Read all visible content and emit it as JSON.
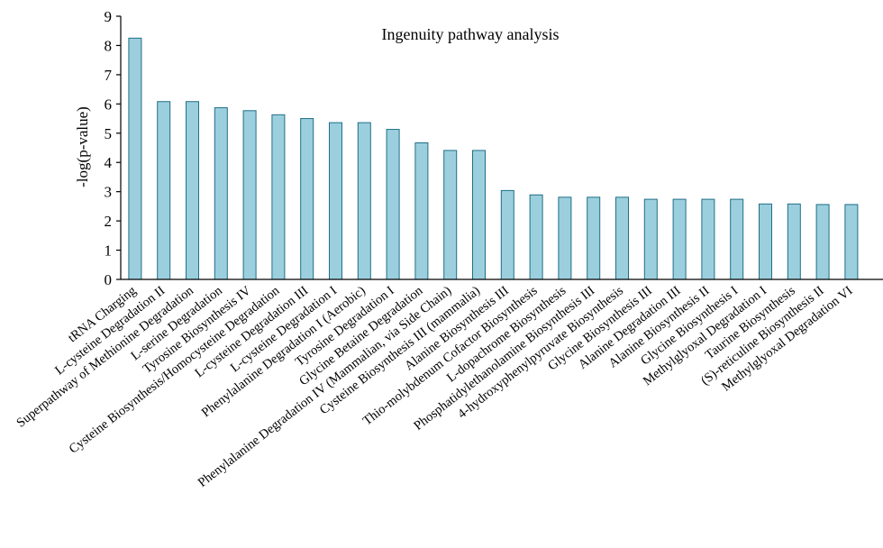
{
  "chart_data": {
    "type": "bar",
    "title": "Ingenuity pathway analysis",
    "xlabel": "",
    "ylabel": "-log(p-value)",
    "ylim": [
      0,
      9
    ],
    "yticks": [
      "0",
      "1",
      "2",
      "3",
      "4",
      "5",
      "6",
      "7",
      "8",
      "9"
    ],
    "grid": false,
    "categories": [
      "tRNA Charging",
      "L-cysteine Degradation II",
      "Superpathway of Methionine Degradation",
      "L-serine Degradation",
      "Tyrosine Biosynthesis IV",
      "Cysteine Biosynthesis/Homocysteine Degradation",
      "L-cysteine Degradation III",
      "L-cysteine Degradation I",
      "Phenylalanine Degradation I (Aerobic)",
      "Tyrosine Degradation I",
      "Glycine Betaine Degradation",
      "Phenylalanine Degradation IV (Mammalian, via Side Chain)",
      "Cysteine Biosynthesis III (mammalia)",
      "Alanine Biosynthesis III",
      "Thio-molybdenum Cofactor Biosynthesis",
      "L-dopachrome Biosynthesis",
      "Phosphatidylethanolamine Biosynthesis III",
      "4-hydroxyphenylpyruvate Biosynthesis",
      "Glycine Biosynthesis III",
      "Alanine Degradation III",
      "Alanine Biosynthesis II",
      "Glycine Biosynthesis I",
      "Methylglyoxal Degradation I",
      "Taurine Biosynthesis",
      "(S)-reticuline Biosynthesis II",
      "Methylglyoxal Degradation VI"
    ],
    "values": [
      8.25,
      6.08,
      6.08,
      5.87,
      5.77,
      5.63,
      5.5,
      5.36,
      5.36,
      5.13,
      4.67,
      4.41,
      4.41,
      3.04,
      2.89,
      2.81,
      2.81,
      2.81,
      2.74,
      2.74,
      2.74,
      2.74,
      2.58,
      2.58,
      2.56,
      2.56
    ],
    "colors": {
      "bar_fill": "#9ccfde",
      "bar_stroke": "#1e6f86"
    }
  }
}
